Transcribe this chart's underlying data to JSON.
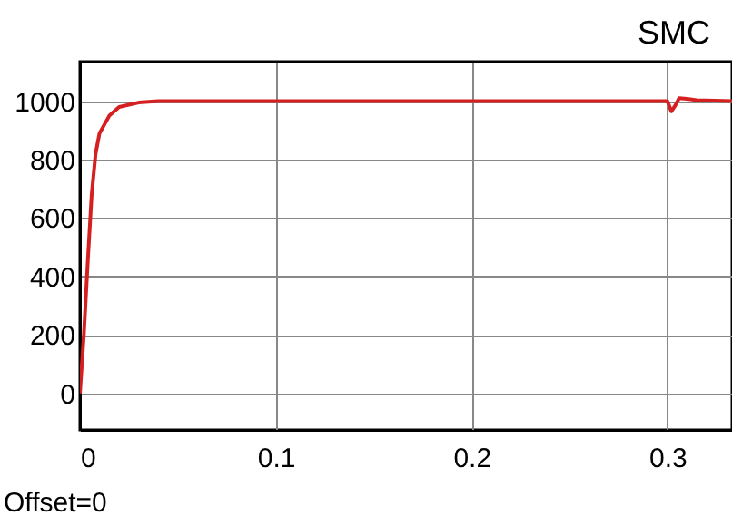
{
  "chart_data": {
    "type": "line",
    "title": "SMC",
    "annotations": [
      "Offset=0"
    ],
    "x": [
      0,
      0.002,
      0.004,
      0.006,
      0.008,
      0.01,
      0.015,
      0.02,
      0.03,
      0.04,
      0.05,
      0.1,
      0.2,
      0.3,
      0.302,
      0.304,
      0.306,
      0.31,
      0.315,
      0.333
    ],
    "series": [
      {
        "color": "#d42020",
        "values": [
          0,
          200,
          450,
          680,
          820,
          890,
          950,
          980,
          995,
          1000,
          1000,
          1000,
          1000,
          1000,
          965,
          985,
          1010,
          1008,
          1003,
          1000
        ]
      }
    ],
    "xlim": [
      0,
      0.333
    ],
    "xticks": [
      0,
      0.1,
      0.2,
      0.3
    ],
    "ylim": [
      -125,
      1135
    ],
    "yticks": [
      0,
      200,
      400,
      600,
      800,
      1000
    ],
    "grid": true,
    "legend": false,
    "marker": "none",
    "line_style": "solid"
  }
}
